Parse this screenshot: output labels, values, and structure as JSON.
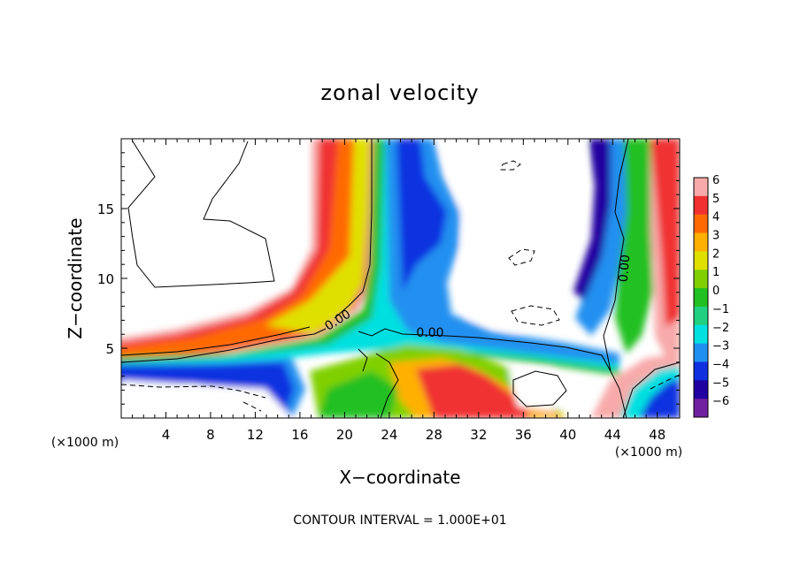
{
  "chart_data": {
    "type": "heatmap",
    "title": "zonal velocity",
    "xlabel": "X−coordinate",
    "ylabel": "Z−coordinate",
    "x_unit_left": "(×1000 m)",
    "x_unit_right": "(×1000 m)",
    "footer": "CONTOUR INTERVAL = 1.000E+01",
    "xlim": [
      0,
      50
    ],
    "ylim": [
      0,
      20
    ],
    "x_ticks": [
      4,
      8,
      12,
      16,
      20,
      24,
      28,
      32,
      36,
      40,
      44,
      48
    ],
    "y_ticks": [
      5,
      10,
      15
    ],
    "contour_labels": [
      "0.00",
      "0.00",
      "0.00"
    ],
    "colorbar": {
      "range": [
        -6,
        6
      ],
      "tick_values": [
        6,
        5,
        4,
        3,
        2,
        1,
        0,
        -1,
        -2,
        -3,
        -4,
        -5,
        -6
      ],
      "tick_labels": [
        "6",
        "5",
        "4",
        "3",
        "2",
        "1",
        "0",
        "−1",
        "−2",
        "−3",
        "−4",
        "−5",
        "−6"
      ],
      "colors": [
        "#f8aaaa",
        "#f03030",
        "#ff6a00",
        "#ffb000",
        "#e0e000",
        "#80d000",
        "#20c020",
        "#20d080",
        "#00e0e0",
        "#2090f0",
        "#1030e0",
        "#2000a0",
        "#7020a0"
      ]
    },
    "features": [
      {
        "name": "warm jet left",
        "x0": 0,
        "z0": 5.0,
        "x1": 20,
        "z1": 8.5,
        "value": 5
      },
      {
        "name": "warm plume",
        "x0": 19,
        "z0": 8,
        "x1": 19,
        "z1": 20,
        "value": 5
      },
      {
        "name": "cold tower",
        "x0": 23,
        "z0": 6,
        "x1": 25,
        "z1": 20,
        "value": -4
      },
      {
        "name": "cold band",
        "x0": 0,
        "z0": 3.8,
        "x1": 45,
        "z1": 5.2,
        "value": -3
      },
      {
        "name": "right warm band",
        "x0": 48,
        "z0": 4,
        "x1": 48,
        "z1": 20,
        "value": 5
      },
      {
        "name": "right cold band",
        "x0": 44,
        "z0": 5,
        "x1": 44,
        "z1": 20,
        "value": -5
      }
    ]
  }
}
